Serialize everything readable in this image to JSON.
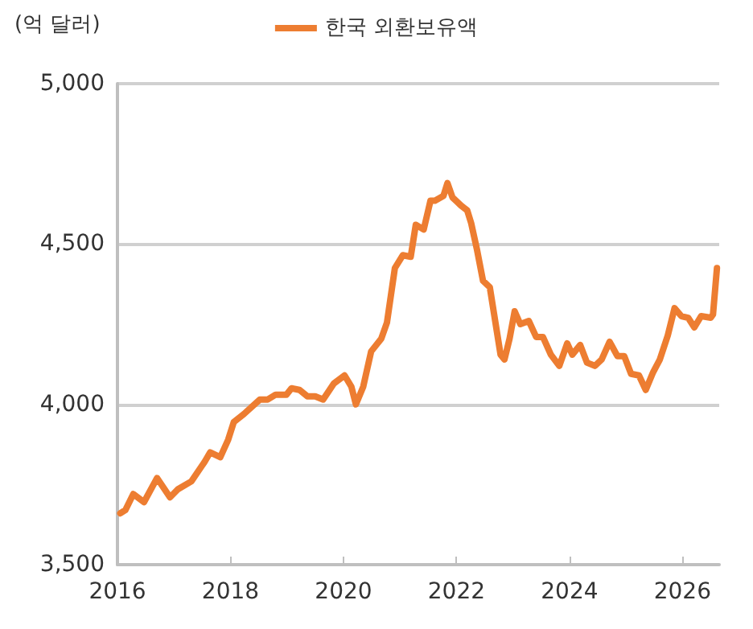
{
  "chart_data": {
    "type": "line",
    "ylabel": "(억 달러)",
    "legend": "top",
    "grid": "y",
    "line_style": "solid",
    "marker": "none",
    "xlim": [
      2016,
      2026.65
    ],
    "xticks": [
      2016,
      2018,
      2020,
      2022,
      2024,
      2026
    ],
    "ylim": [
      3500,
      5000
    ],
    "yticks": [
      {
        "value": 3500,
        "label": "3,500"
      },
      {
        "value": 4000,
        "label": "4,000"
      },
      {
        "value": 4500,
        "label": "4,500"
      },
      {
        "value": 5000,
        "label": "5,000"
      }
    ],
    "series": [
      {
        "name": "한국 외환보유액",
        "color": "#ed7d31",
        "x": [
          2016.05,
          2016.14,
          2016.28,
          2016.47,
          2016.7,
          2016.93,
          2017.07,
          2017.31,
          2017.54,
          2017.64,
          2017.82,
          2017.96,
          2018.06,
          2018.24,
          2018.52,
          2018.66,
          2018.8,
          2018.99,
          2019.08,
          2019.22,
          2019.36,
          2019.5,
          2019.64,
          2019.83,
          2020.02,
          2020.14,
          2020.22,
          2020.35,
          2020.49,
          2020.67,
          2020.77,
          2020.91,
          2021.05,
          2021.19,
          2021.28,
          2021.42,
          2021.54,
          2021.62,
          2021.77,
          2021.84,
          2021.93,
          2022.08,
          2022.19,
          2022.26,
          2022.36,
          2022.47,
          2022.59,
          2022.78,
          2022.85,
          2022.94,
          2023.03,
          2023.13,
          2023.28,
          2023.41,
          2023.53,
          2023.67,
          2023.82,
          2023.96,
          2024.05,
          2024.19,
          2024.31,
          2024.45,
          2024.57,
          2024.71,
          2024.85,
          2024.97,
          2025.09,
          2025.23,
          2025.35,
          2025.48,
          2025.6,
          2025.74,
          2025.86,
          2025.98,
          2026.1,
          2026.21,
          2026.33,
          2026.5,
          2026.54,
          2026.61
        ],
        "values": [
          3660,
          3670,
          3720,
          3695,
          3770,
          3710,
          3735,
          3760,
          3820,
          3850,
          3835,
          3890,
          3945,
          3970,
          4015,
          4015,
          4030,
          4030,
          4050,
          4045,
          4025,
          4025,
          4015,
          4065,
          4090,
          4055,
          4000,
          4055,
          4165,
          4205,
          4255,
          4425,
          4465,
          4460,
          4560,
          4545,
          4635,
          4635,
          4650,
          4690,
          4645,
          4620,
          4605,
          4565,
          4485,
          4385,
          4365,
          4155,
          4140,
          4205,
          4290,
          4250,
          4260,
          4210,
          4210,
          4155,
          4120,
          4190,
          4155,
          4185,
          4130,
          4120,
          4140,
          4195,
          4150,
          4150,
          4095,
          4090,
          4045,
          4100,
          4140,
          4215,
          4300,
          4275,
          4270,
          4240,
          4275,
          4270,
          4280,
          4425
        ]
      }
    ]
  }
}
